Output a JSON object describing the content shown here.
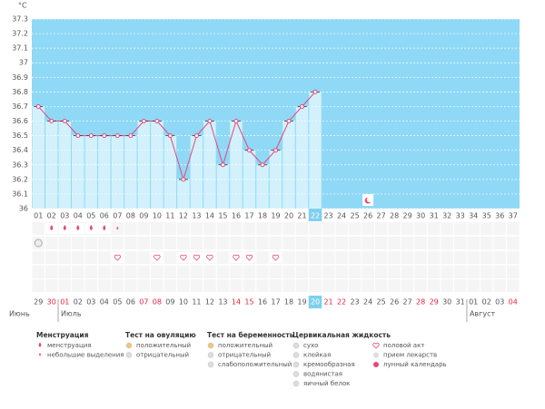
{
  "chart_data": {
    "type": "line",
    "unit": "°C",
    "categories": [
      "01",
      "02",
      "03",
      "04",
      "05",
      "06",
      "07",
      "08",
      "09",
      "10",
      "11",
      "12",
      "13",
      "14",
      "15",
      "16",
      "17",
      "18",
      "19",
      "20",
      "21",
      "22",
      "23",
      "24",
      "25",
      "26",
      "27",
      "28",
      "29",
      "30",
      "31",
      "32",
      "33",
      "34",
      "35",
      "36",
      "37"
    ],
    "values": [
      36.7,
      36.6,
      36.6,
      36.5,
      36.5,
      36.5,
      36.5,
      36.5,
      36.6,
      36.6,
      36.5,
      36.2,
      36.5,
      36.6,
      36.3,
      36.6,
      36.4,
      36.3,
      36.4,
      36.6,
      36.7,
      36.8,
      null,
      null,
      null,
      null,
      null,
      null,
      null,
      null,
      null,
      null,
      null,
      null,
      null,
      null,
      null
    ],
    "ylim": [
      36,
      37.3
    ],
    "yticks": [
      36,
      36.1,
      36.2,
      36.3,
      36.4,
      36.5,
      36.6,
      36.7,
      36.8,
      36.9,
      37,
      37.1,
      37.2,
      37.3
    ],
    "grid": true,
    "color": "#e8457a",
    "background_color": "#8fd9f6",
    "bar_color": "#d2f1fc",
    "today_day": "22",
    "today_date": "20",
    "menstruation_days": [
      "02",
      "03",
      "04",
      "05",
      "06"
    ],
    "spotting_days": [
      "07"
    ],
    "ovulation_negative_days": [
      "01"
    ],
    "intercourse_days": [
      "07",
      "10",
      "12",
      "13",
      "14",
      "16",
      "17",
      "19"
    ],
    "moon_days": [
      "26"
    ],
    "months": [
      {
        "name": "Июнь",
        "dates": [
          "29",
          "30"
        ],
        "red": [
          "30"
        ]
      },
      {
        "name": "Июль",
        "dates": [
          "01",
          "02",
          "03",
          "04",
          "05",
          "06",
          "07",
          "08",
          "09",
          "10",
          "11",
          "12",
          "13",
          "14",
          "15",
          "16",
          "17",
          "18",
          "19",
          "20",
          "21",
          "22",
          "23",
          "24",
          "25",
          "26",
          "27",
          "28",
          "29",
          "30",
          "31"
        ],
        "red": [
          "01",
          "07",
          "08",
          "14",
          "15",
          "21",
          "22",
          "28",
          "29"
        ]
      },
      {
        "name": "Август",
        "dates": [
          "01",
          "02",
          "03",
          "04"
        ],
        "red": [
          "04"
        ]
      }
    ],
    "legend": [
      {
        "title": "Менструация",
        "items": [
          "менструация",
          "небольшие выделения"
        ]
      },
      {
        "title": "Тест на овуляцию",
        "items": [
          "положительный",
          "отрицательный"
        ]
      },
      {
        "title": "Тест на беременность",
        "items": [
          "положительный",
          "отрицательный",
          "слабоположительный"
        ]
      },
      {
        "title": "Цервикальная жидкость",
        "items": [
          "сухо",
          "клейкая",
          "кремообразная",
          "водянистая",
          "яичный белок"
        ]
      }
    ],
    "legend_extra": [
      "половой акт",
      "прием лекарств",
      "лунный календарь"
    ]
  }
}
